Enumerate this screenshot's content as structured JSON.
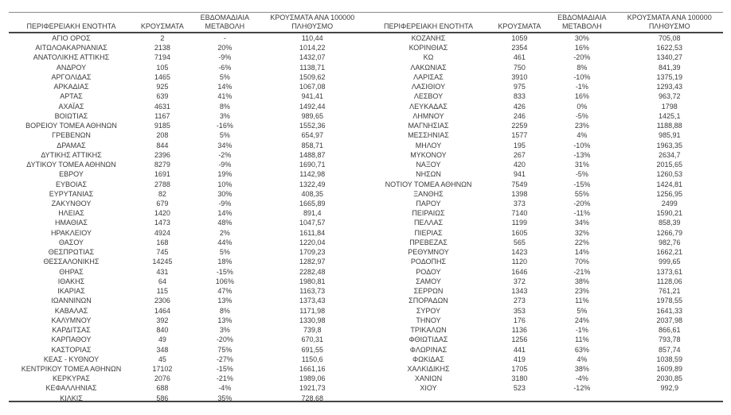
{
  "colors": {
    "text": "#3a3a3a",
    "border_light": "#8a8a8a",
    "border_dark": "#454545"
  },
  "table": {
    "headers": [
      "ΠΕΡΙΦΕΡΕΙΑΚΗ ΕΝΟΤΗΤΑ",
      "ΚΡΟΥΣΜΑΤΑ",
      "ΕΒΔΟΜΑΔΙΑΙΑ ΜΕΤΑΒΟΛΗ",
      "ΚΡΟΥΣΜΑΤΑ ΑΝΑ 100000 ΠΛΗΘΥΣΜΟ"
    ],
    "left_rows": [
      [
        "ΑΓΙΟ ΟΡΟΣ",
        "2",
        "-",
        "110,44"
      ],
      [
        "ΑΙΤΩΛΟΑΚΑΡΝΑΝΙΑΣ",
        "2138",
        "20%",
        "1014,22"
      ],
      [
        "ΑΝΑΤΟΛΙΚΗΣ ΑΤΤΙΚΗΣ",
        "7194",
        "-9%",
        "1432,07"
      ],
      [
        "ΑΝΔΡΟΥ",
        "105",
        "-6%",
        "1138,71"
      ],
      [
        "ΑΡΓΟΛΙΔΑΣ",
        "1465",
        "5%",
        "1509,62"
      ],
      [
        "ΑΡΚΑΔΙΑΣ",
        "925",
        "14%",
        "1067,08"
      ],
      [
        "ΑΡΤΑΣ",
        "639",
        "41%",
        "941,41"
      ],
      [
        "ΑΧΑΪΑΣ",
        "4631",
        "8%",
        "1492,44"
      ],
      [
        "ΒΟΙΩΤΙΑΣ",
        "1167",
        "3%",
        "989,65"
      ],
      [
        "ΒΟΡΕΙΟΥ ΤΟΜΕΑ ΑΘΗΝΩΝ",
        "9185",
        "-16%",
        "1552,36"
      ],
      [
        "ΓΡΕΒΕΝΩΝ",
        "208",
        "5%",
        "654,97"
      ],
      [
        "ΔΡΑΜΑΣ",
        "844",
        "34%",
        "858,71"
      ],
      [
        "ΔΥΤΙΚΗΣ ΑΤΤΙΚΗΣ",
        "2396",
        "-2%",
        "1488,87"
      ],
      [
        "ΔΥΤΙΚΟΥ ΤΟΜΕΑ ΑΘΗΝΩΝ",
        "8279",
        "-9%",
        "1690,71"
      ],
      [
        "ΕΒΡΟΥ",
        "1691",
        "19%",
        "1142,98"
      ],
      [
        "ΕΥΒΟΙΑΣ",
        "2788",
        "10%",
        "1322,49"
      ],
      [
        "ΕΥΡΥΤΑΝΙΑΣ",
        "82",
        "30%",
        "408,35"
      ],
      [
        "ΖΑΚΥΝΘΟΥ",
        "679",
        "-9%",
        "1665,89"
      ],
      [
        "ΗΛΕΙΑΣ",
        "1420",
        "14%",
        "891,4"
      ],
      [
        "ΗΜΑΘΙΑΣ",
        "1473",
        "48%",
        "1047,57"
      ],
      [
        "ΗΡΑΚΛΕΙΟΥ",
        "4924",
        "2%",
        "1611,84"
      ],
      [
        "ΘΑΣΟΥ",
        "168",
        "44%",
        "1220,04"
      ],
      [
        "ΘΕΣΠΡΩΤΙΑΣ",
        "745",
        "5%",
        "1709,23"
      ],
      [
        "ΘΕΣΣΑΛΟΝΙΚΗΣ",
        "14245",
        "18%",
        "1282,97"
      ],
      [
        "ΘΗΡΑΣ",
        "431",
        "-15%",
        "2282,48"
      ],
      [
        "ΙΘΑΚΗΣ",
        "64",
        "106%",
        "1980,81"
      ],
      [
        "ΙΚΑΡΙΑΣ",
        "115",
        "47%",
        "1163,73"
      ],
      [
        "ΙΩΑΝΝΙΝΩΝ",
        "2306",
        "13%",
        "1373,43"
      ],
      [
        "ΚΑΒΑΛΑΣ",
        "1464",
        "8%",
        "1171,98"
      ],
      [
        "ΚΑΛΥΜΝΟΥ",
        "392",
        "13%",
        "1330,98"
      ],
      [
        "ΚΑΡΔΙΤΣΑΣ",
        "840",
        "3%",
        "739,8"
      ],
      [
        "ΚΑΡΠΑΘΟΥ",
        "49",
        "-20%",
        "670,31"
      ],
      [
        "ΚΑΣΤΟΡΙΑΣ",
        "348",
        "75%",
        "691,55"
      ],
      [
        "ΚΕΑΣ - ΚΥΘΝΟΥ",
        "45",
        "-27%",
        "1150,6"
      ],
      [
        "ΚΕΝΤΡΙΚΟΥ ΤΟΜΕΑ ΑΘΗΝΩΝ",
        "17102",
        "-15%",
        "1661,16"
      ],
      [
        "ΚΕΡΚΥΡΑΣ",
        "2076",
        "-21%",
        "1989,06"
      ],
      [
        "ΚΕΦΑΛΛΗΝΙΑΣ",
        "688",
        "-4%",
        "1921,73"
      ],
      [
        "ΚΙΛΚΙΣ",
        "586",
        "35%",
        "728,68"
      ]
    ],
    "right_rows": [
      [
        "ΚΟΖΑΝΗΣ",
        "1059",
        "30%",
        "705,08"
      ],
      [
        "ΚΟΡΙΝΘΙΑΣ",
        "2354",
        "16%",
        "1622,53"
      ],
      [
        "ΚΩ",
        "461",
        "-20%",
        "1340,27"
      ],
      [
        "ΛΑΚΩΝΙΑΣ",
        "750",
        "8%",
        "841,39"
      ],
      [
        "ΛΑΡΙΣΑΣ",
        "3910",
        "-10%",
        "1375,19"
      ],
      [
        "ΛΑΣΙΘΙΟΥ",
        "975",
        "-1%",
        "1293,43"
      ],
      [
        "ΛΕΣΒΟΥ",
        "833",
        "16%",
        "963,72"
      ],
      [
        "ΛΕΥΚΑΔΑΣ",
        "426",
        "0%",
        "1798"
      ],
      [
        "ΛΗΜΝΟΥ",
        "246",
        "-5%",
        "1425,1"
      ],
      [
        "ΜΑΓΝΗΣΙΑΣ",
        "2259",
        "23%",
        "1188,88"
      ],
      [
        "ΜΕΣΣΗΝΙΑΣ",
        "1577",
        "4%",
        "985,91"
      ],
      [
        "ΜΗΛΟΥ",
        "195",
        "-10%",
        "1963,35"
      ],
      [
        "ΜΥΚΟΝΟΥ",
        "267",
        "-13%",
        "2634,7"
      ],
      [
        "ΝΑΞΟΥ",
        "420",
        "31%",
        "2015,65"
      ],
      [
        "ΝΗΣΩΝ",
        "941",
        "-5%",
        "1260,53"
      ],
      [
        "ΝΟΤΙΟΥ ΤΟΜΕΑ ΑΘΗΝΩΝ",
        "7549",
        "-15%",
        "1424,81"
      ],
      [
        "ΞΑΝΘΗΣ",
        "1398",
        "55%",
        "1256,95"
      ],
      [
        "ΠΑΡΟΥ",
        "373",
        "-20%",
        "2499"
      ],
      [
        "ΠΕΙΡΑΙΩΣ",
        "7140",
        "-11%",
        "1590,21"
      ],
      [
        "ΠΕΛΛΑΣ",
        "1199",
        "34%",
        "858,39"
      ],
      [
        "ΠΙΕΡΙΑΣ",
        "1605",
        "32%",
        "1266,79"
      ],
      [
        "ΠΡΕΒΕΖΑΣ",
        "565",
        "22%",
        "982,76"
      ],
      [
        "ΡΕΘΥΜΝΟΥ",
        "1423",
        "14%",
        "1662,21"
      ],
      [
        "ΡΟΔΟΠΗΣ",
        "1120",
        "70%",
        "999,65"
      ],
      [
        "ΡΟΔΟΥ",
        "1646",
        "-21%",
        "1373,61"
      ],
      [
        "ΣΑΜΟΥ",
        "372",
        "38%",
        "1128,06"
      ],
      [
        "ΣΕΡΡΩΝ",
        "1343",
        "23%",
        "761,21"
      ],
      [
        "ΣΠΟΡΑΔΩΝ",
        "273",
        "11%",
        "1978,55"
      ],
      [
        "ΣΥΡΟΥ",
        "353",
        "5%",
        "1641,33"
      ],
      [
        "ΤΗΝΟΥ",
        "176",
        "24%",
        "2037,98"
      ],
      [
        "ΤΡΙΚΑΛΩΝ",
        "1136",
        "-1%",
        "866,61"
      ],
      [
        "ΦΘΙΩΤΙΔΑΣ",
        "1256",
        "11%",
        "793,78"
      ],
      [
        "ΦΛΩΡΙΝΑΣ",
        "441",
        "63%",
        "857,74"
      ],
      [
        "ΦΩΚΙΔΑΣ",
        "419",
        "4%",
        "1038,59"
      ],
      [
        "ΧΑΛΚΙΔΙΚΗΣ",
        "1705",
        "38%",
        "1609,89"
      ],
      [
        "ΧΑΝΙΩΝ",
        "3180",
        "-4%",
        "2030,85"
      ],
      [
        "ΧΙΟΥ",
        "523",
        "-12%",
        "992,9"
      ]
    ]
  }
}
